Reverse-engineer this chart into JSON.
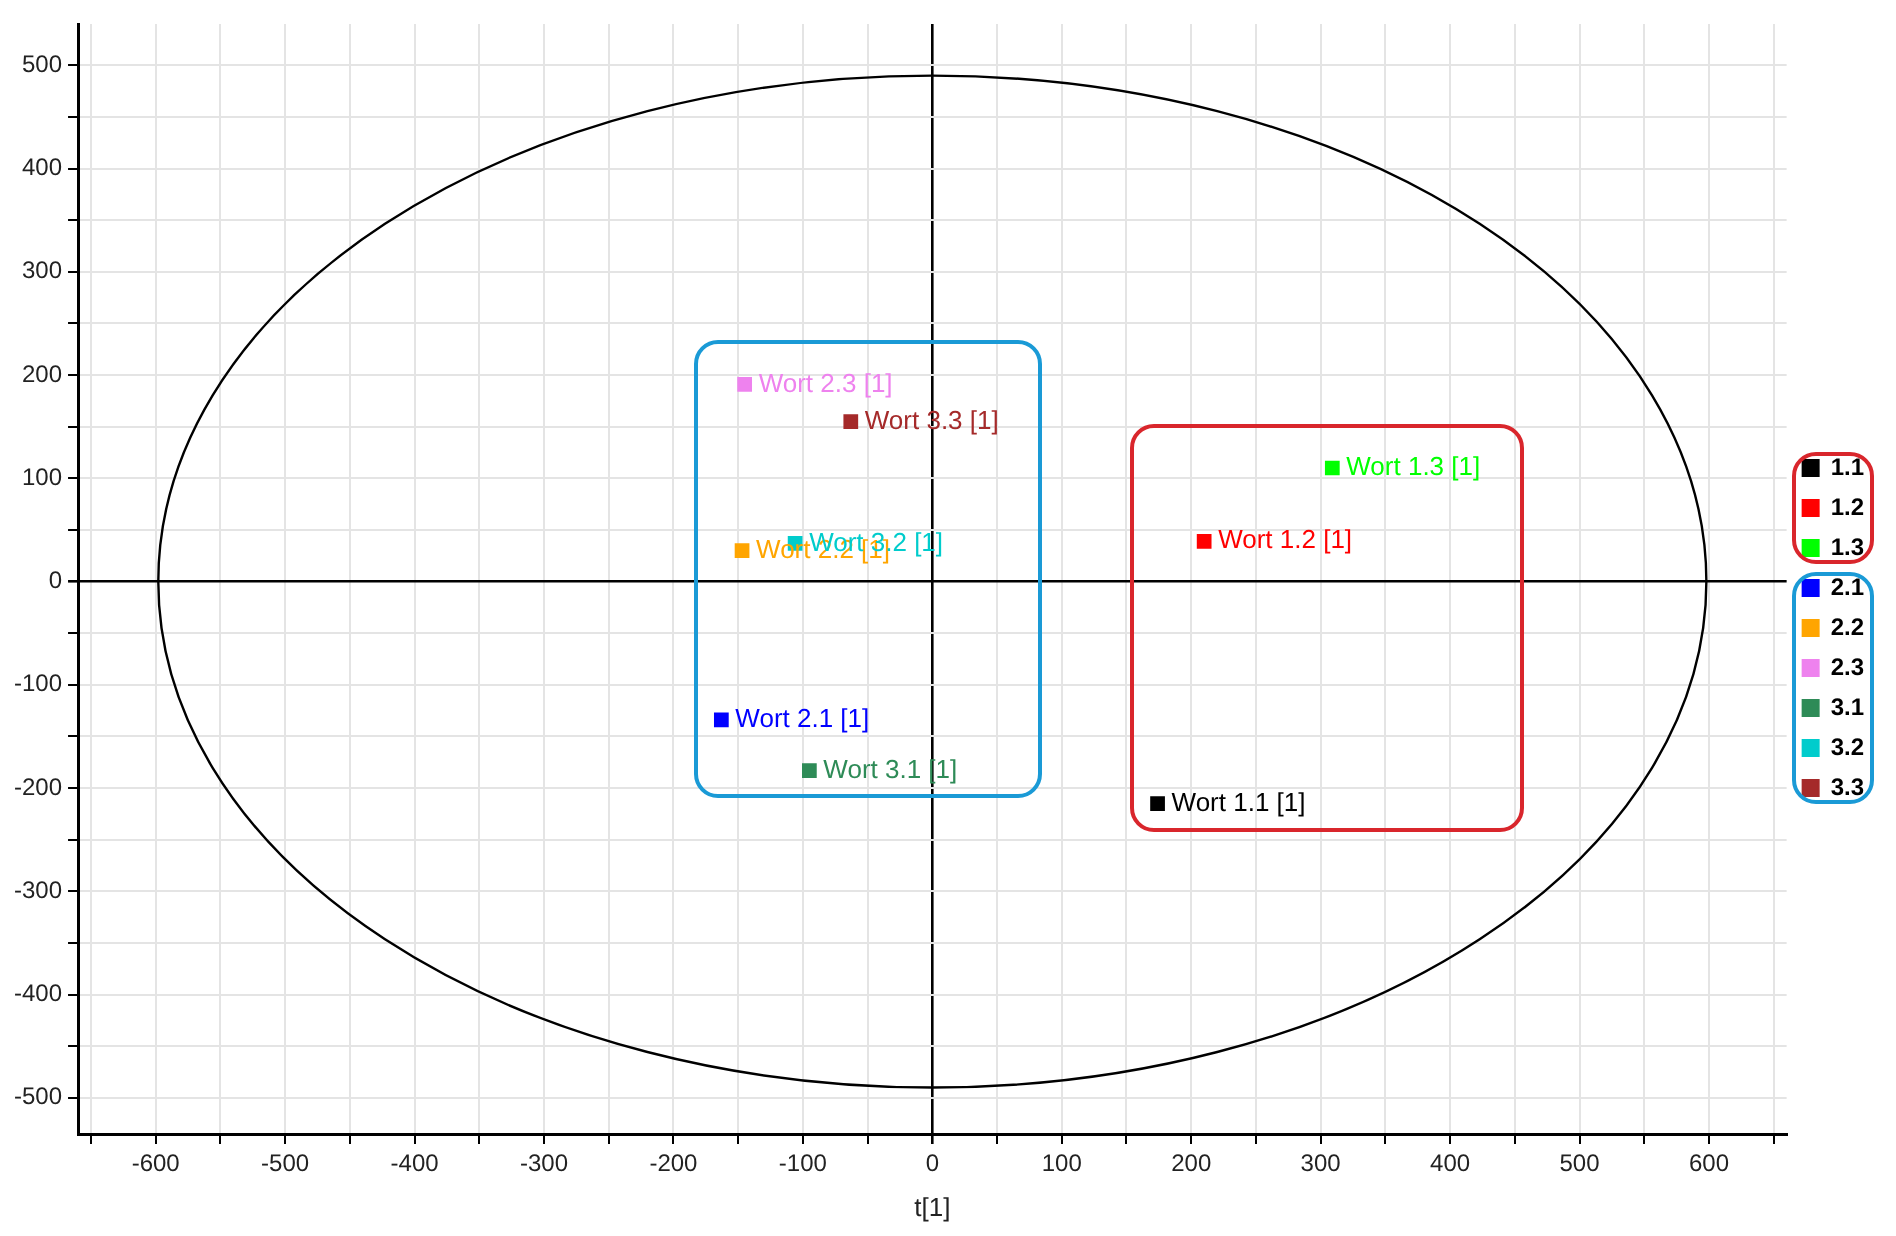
{
  "chart_data": {
    "type": "scatter",
    "xlabel": "t[1]",
    "xlim": [
      -660,
      660
    ],
    "ylim": [
      -535,
      540
    ],
    "xticks": [
      {
        "value": -650,
        "label": null
      },
      -600,
      {
        "value": -550,
        "label": null
      },
      -500,
      {
        "value": -450,
        "label": null
      },
      -400,
      {
        "value": -350,
        "label": null
      },
      -300,
      {
        "value": -250,
        "label": null
      },
      -200,
      {
        "value": -150,
        "label": null
      },
      -100,
      {
        "value": -50,
        "label": null
      },
      0,
      {
        "value": 50,
        "label": null
      },
      100,
      {
        "value": 150,
        "label": null
      },
      200,
      {
        "value": 250,
        "label": null
      },
      300,
      {
        "value": 350,
        "label": null
      },
      400,
      {
        "value": 450,
        "label": null
      },
      500,
      {
        "value": 550,
        "label": null
      },
      600,
      {
        "value": 650,
        "label": null
      }
    ],
    "yticks": [
      -500,
      {
        "value": -450,
        "label": null
      },
      -400,
      {
        "value": -350,
        "label": null
      },
      -300,
      {
        "value": -250,
        "label": null
      },
      -200,
      {
        "value": -150,
        "label": null
      },
      -100,
      {
        "value": -50,
        "label": null
      },
      0,
      {
        "value": 50,
        "label": null
      },
      100,
      {
        "value": 150,
        "label": null
      },
      200,
      {
        "value": 250,
        "label": null
      },
      300,
      {
        "value": 350,
        "label": null
      },
      400,
      {
        "value": 450,
        "label": null
      },
      500
    ],
    "grid": true,
    "legend": "right",
    "marker": "square",
    "series": [
      {
        "name": "1.1",
        "color": "#000000",
        "x": [
          174
        ],
        "values": [
          -215
        ],
        "value_labels": [
          "Wort 1.1 [1]"
        ]
      },
      {
        "name": "1.2",
        "color": "#ff0000",
        "x": [
          210
        ],
        "values": [
          39
        ],
        "value_labels": [
          "Wort 1.2 [1]"
        ]
      },
      {
        "name": "1.3",
        "color": "#00ff00",
        "x": [
          309
        ],
        "values": [
          110
        ],
        "value_labels": [
          "Wort 1.3 [1]"
        ]
      },
      {
        "name": "2.1",
        "color": "#0000ff",
        "x": [
          -163
        ],
        "values": [
          -134
        ],
        "value_labels": [
          "Wort 2.1 [1]"
        ]
      },
      {
        "name": "2.2",
        "color": "#ffa500",
        "x": [
          -147
        ],
        "values": [
          30
        ],
        "value_labels": [
          "Wort 2.2 [1]"
        ]
      },
      {
        "name": "2.3",
        "color": "#ee82ee",
        "x": [
          -145
        ],
        "values": [
          191
        ],
        "value_labels": [
          "Wort 2.3 [1]"
        ]
      },
      {
        "name": "3.1",
        "color": "#2e8b57",
        "x": [
          -95
        ],
        "values": [
          -183
        ],
        "value_labels": [
          "Wort 3.1 [1]"
        ]
      },
      {
        "name": "3.2",
        "color": "#00cccc",
        "x": [
          -106
        ],
        "values": [
          37
        ],
        "value_labels": [
          "Wort 3.2 [1]"
        ]
      },
      {
        "name": "3.3",
        "color": "#a52a2a",
        "x": [
          -63
        ],
        "values": [
          155
        ],
        "value_labels": [
          "Wort 3.3 [1]"
        ]
      }
    ]
  }
}
